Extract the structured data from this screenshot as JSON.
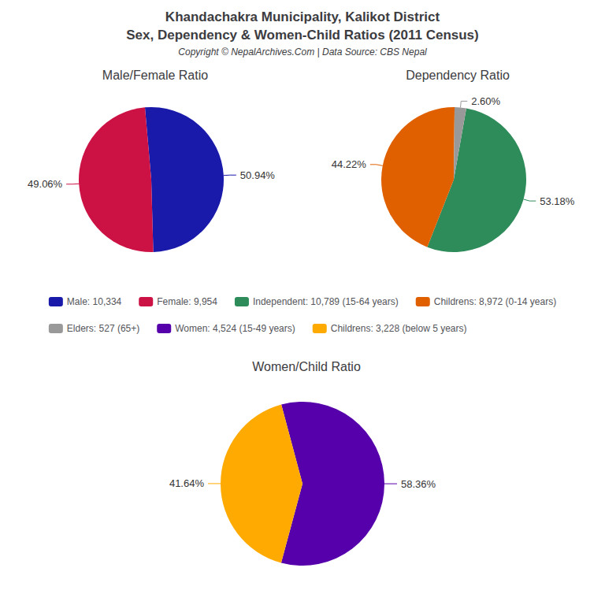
{
  "title": "Khandachakra Municipality, Kalikot District",
  "subtitle": "Sex, Dependency & Women-Child Ratios (2011 Census)",
  "annotations": [
    "Copyright © NepalArchives.Com | Data Source: CBS Nepal"
  ],
  "chart_data": [
    {
      "type": "pie",
      "title": "Male/Female Ratio",
      "categories": [
        "Male: 10,334",
        "Female: 9,954"
      ],
      "values": [
        50.94,
        49.06
      ],
      "value_labels": [
        "50.94%",
        "49.06%"
      ],
      "colors": [
        "#1a1aaa",
        "#cc1144"
      ],
      "data_labels": true,
      "legend": "center"
    },
    {
      "type": "pie",
      "title": "Dependency Ratio",
      "categories": [
        "Independent: 10,789 (15-64 years)",
        "Childrens: 8,972 (0-14 years)",
        "Elders: 527 (65+)"
      ],
      "values": [
        53.18,
        44.22,
        2.6
      ],
      "value_labels": [
        "53.18%",
        "44.22%",
        "2.60%"
      ],
      "colors": [
        "#2e8b5a",
        "#e06000",
        "#999999"
      ],
      "data_labels": true,
      "legend": "center"
    },
    {
      "type": "pie",
      "title": "Women/Child Ratio",
      "categories": [
        "Women: 4,524 (15-49 years)",
        "Childrens: 3,228 (below 5 years)"
      ],
      "values": [
        58.36,
        41.64
      ],
      "value_labels": [
        "58.36%",
        "41.64%"
      ],
      "colors": [
        "#5500aa",
        "#ffaa00"
      ],
      "data_labels": true,
      "legend": "center"
    }
  ]
}
